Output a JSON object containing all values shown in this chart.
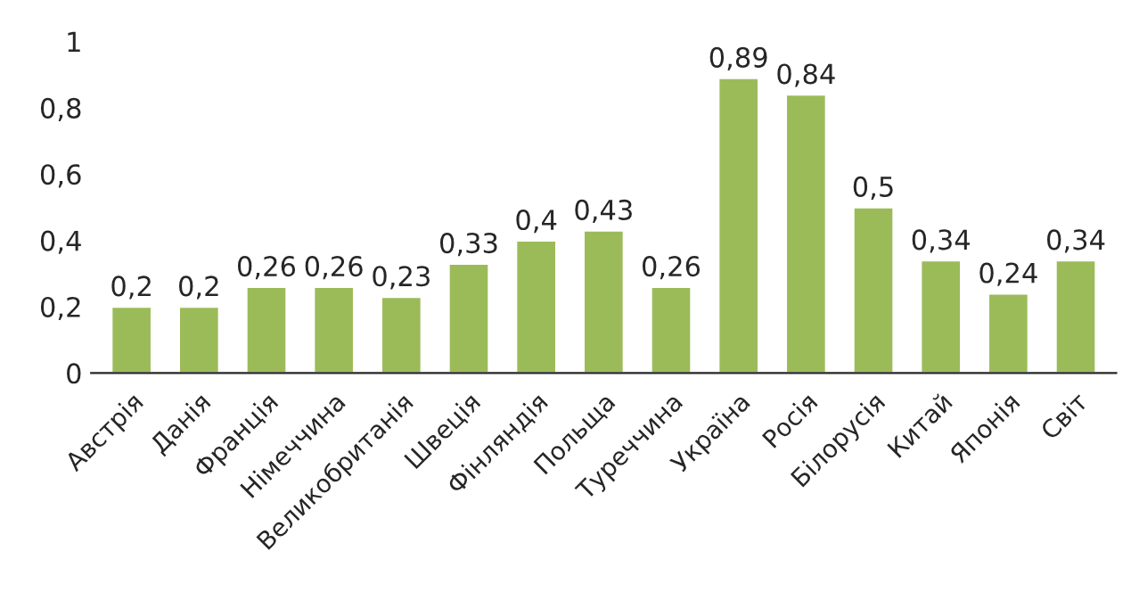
{
  "chart_data": {
    "type": "bar",
    "categories": [
      "Австрія",
      "Данія",
      "Франція",
      "Німеччина",
      "Великобританія",
      "Швеція",
      "Фінляндія",
      "Польща",
      "Туреччина",
      "Україна",
      "Росія",
      "Білорусія",
      "Китай",
      "Японія",
      "Світ"
    ],
    "values": [
      0.2,
      0.2,
      0.26,
      0.26,
      0.23,
      0.33,
      0.4,
      0.43,
      0.26,
      0.89,
      0.84,
      0.5,
      0.34,
      0.24,
      0.34
    ],
    "value_labels": [
      "0,2",
      "0,2",
      "0,26",
      "0,26",
      "0,23",
      "0,33",
      "0,4",
      "0,43",
      "0,26",
      "0,89",
      "0,84",
      "0,5",
      "0,34",
      "0,24",
      "0,34"
    ],
    "color": "#9bbb59",
    "ylim": [
      0,
      1
    ],
    "yticks": [
      {
        "value": 0,
        "label": "0"
      },
      {
        "value": 0.2,
        "label": "0,2"
      },
      {
        "value": 0.4,
        "label": "0,4"
      },
      {
        "value": 0.6,
        "label": "0,6"
      },
      {
        "value": 0.8,
        "label": "0,8"
      },
      {
        "value": 1,
        "label": "1"
      }
    ],
    "grid": false,
    "legend": false
  }
}
